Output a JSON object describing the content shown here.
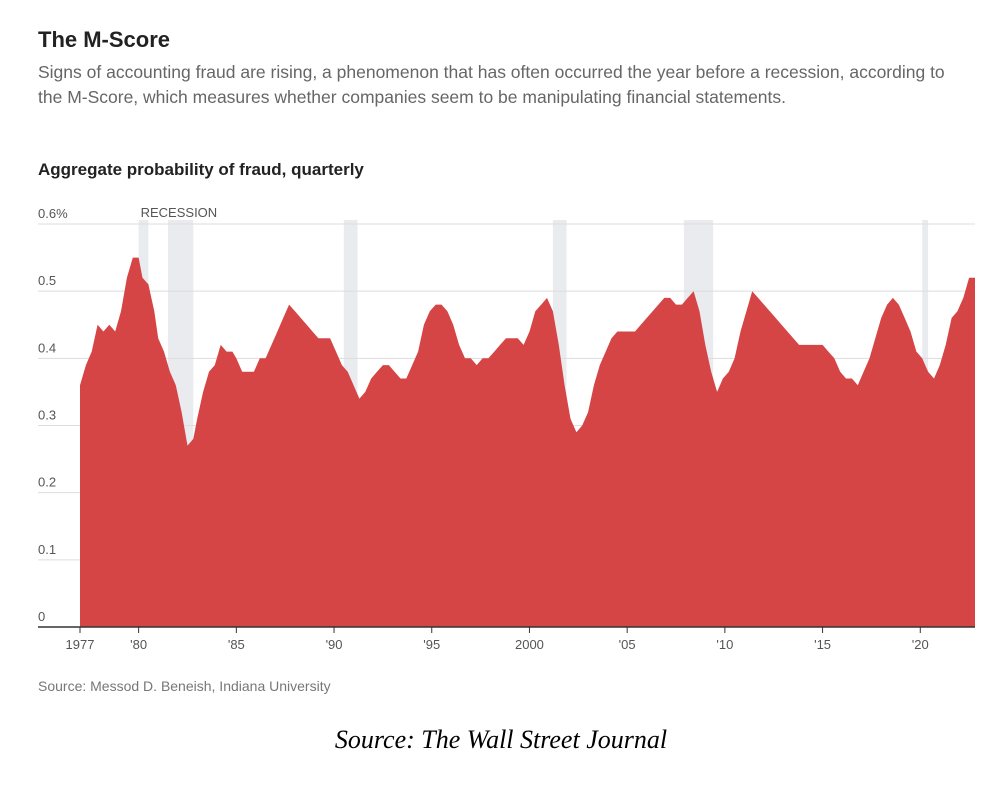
{
  "title": "The M-Score",
  "subtitle": "Signs of accounting fraud are rising, a phenomenon that has often occurred the year before a recession, according to the M-Score, which measures whether companies seem to be manipulating financial statements.",
  "chart_label": "Aggregate probability of fraud, quarterly",
  "source_note": "Source: Messod D. Beneish, Indiana University",
  "credit": "Source: The Wall Street Journal",
  "colors": {
    "area": "#d64545",
    "recession": "#e9ebee",
    "grid": "#dddddd",
    "axis": "#333333"
  },
  "chart_data": {
    "type": "area",
    "ylim": [
      0,
      0.6
    ],
    "xlim": [
      1977,
      2022.8
    ],
    "y_ticks": [
      {
        "value": 0,
        "label": "0"
      },
      {
        "value": 0.1,
        "label": "0.1"
      },
      {
        "value": 0.2,
        "label": "0.2"
      },
      {
        "value": 0.3,
        "label": "0.3"
      },
      {
        "value": 0.4,
        "label": "0.4"
      },
      {
        "value": 0.5,
        "label": "0.5"
      },
      {
        "value": 0.6,
        "label": "0.6%"
      }
    ],
    "x_ticks": [
      {
        "value": 1977,
        "label": "1977"
      },
      {
        "value": 1980,
        "label": "'80"
      },
      {
        "value": 1985,
        "label": "'85"
      },
      {
        "value": 1990,
        "label": "'90"
      },
      {
        "value": 1995,
        "label": "'95"
      },
      {
        "value": 2000,
        "label": "2000"
      },
      {
        "value": 2005,
        "label": "'05"
      },
      {
        "value": 2010,
        "label": "'10"
      },
      {
        "value": 2015,
        "label": "'15"
      },
      {
        "value": 2020,
        "label": "'20"
      }
    ],
    "recession_label": "RECESSION",
    "recessions": [
      [
        1980.0,
        1980.5
      ],
      [
        1981.5,
        1982.8
      ],
      [
        1990.5,
        1991.2
      ],
      [
        2001.2,
        2001.9
      ],
      [
        2007.9,
        2009.4
      ],
      [
        2020.1,
        2020.4
      ]
    ],
    "x": [
      1977.0,
      1977.3,
      1977.6,
      1977.9,
      1978.2,
      1978.5,
      1978.8,
      1979.1,
      1979.4,
      1979.7,
      1980.0,
      1980.2,
      1980.5,
      1980.8,
      1981.0,
      1981.3,
      1981.6,
      1981.9,
      1982.2,
      1982.5,
      1982.8,
      1983.0,
      1983.3,
      1983.6,
      1983.9,
      1984.2,
      1984.5,
      1984.8,
      1985.0,
      1985.3,
      1985.6,
      1985.9,
      1986.2,
      1986.5,
      1986.8,
      1987.1,
      1987.4,
      1987.7,
      1988.0,
      1988.3,
      1988.6,
      1988.9,
      1989.2,
      1989.5,
      1989.8,
      1990.1,
      1990.4,
      1990.7,
      1991.0,
      1991.3,
      1991.6,
      1991.9,
      1992.2,
      1992.5,
      1992.8,
      1993.1,
      1993.4,
      1993.7,
      1994.0,
      1994.3,
      1994.6,
      1994.9,
      1995.2,
      1995.5,
      1995.8,
      1996.1,
      1996.4,
      1996.7,
      1997.0,
      1997.3,
      1997.6,
      1997.9,
      1998.2,
      1998.5,
      1998.8,
      1999.1,
      1999.4,
      1999.7,
      2000.0,
      2000.3,
      2000.6,
      2000.9,
      2001.2,
      2001.5,
      2001.8,
      2002.1,
      2002.4,
      2002.7,
      2003.0,
      2003.3,
      2003.6,
      2003.9,
      2004.2,
      2004.5,
      2004.8,
      2005.1,
      2005.4,
      2005.7,
      2006.0,
      2006.3,
      2006.6,
      2006.9,
      2007.2,
      2007.5,
      2007.8,
      2008.1,
      2008.4,
      2008.7,
      2009.0,
      2009.3,
      2009.6,
      2009.9,
      2010.2,
      2010.5,
      2010.8,
      2011.1,
      2011.4,
      2011.7,
      2012.0,
      2012.3,
      2012.6,
      2012.9,
      2013.2,
      2013.5,
      2013.8,
      2014.1,
      2014.4,
      2014.7,
      2015.0,
      2015.3,
      2015.6,
      2015.9,
      2016.2,
      2016.5,
      2016.8,
      2017.1,
      2017.4,
      2017.7,
      2018.0,
      2018.3,
      2018.6,
      2018.9,
      2019.2,
      2019.5,
      2019.8,
      2020.1,
      2020.4,
      2020.7,
      2021.0,
      2021.3,
      2021.6,
      2021.9,
      2022.2,
      2022.5,
      2022.8
    ],
    "values": [
      0.36,
      0.39,
      0.41,
      0.45,
      0.44,
      0.45,
      0.44,
      0.47,
      0.52,
      0.55,
      0.55,
      0.52,
      0.51,
      0.47,
      0.43,
      0.41,
      0.38,
      0.36,
      0.32,
      0.27,
      0.28,
      0.31,
      0.35,
      0.38,
      0.39,
      0.42,
      0.41,
      0.41,
      0.4,
      0.38,
      0.38,
      0.38,
      0.4,
      0.4,
      0.42,
      0.44,
      0.46,
      0.48,
      0.47,
      0.46,
      0.45,
      0.44,
      0.43,
      0.43,
      0.43,
      0.41,
      0.39,
      0.38,
      0.36,
      0.34,
      0.35,
      0.37,
      0.38,
      0.39,
      0.39,
      0.38,
      0.37,
      0.37,
      0.39,
      0.41,
      0.45,
      0.47,
      0.48,
      0.48,
      0.47,
      0.45,
      0.42,
      0.4,
      0.4,
      0.39,
      0.4,
      0.4,
      0.41,
      0.42,
      0.43,
      0.43,
      0.43,
      0.42,
      0.44,
      0.47,
      0.48,
      0.49,
      0.47,
      0.42,
      0.36,
      0.31,
      0.29,
      0.3,
      0.32,
      0.36,
      0.39,
      0.41,
      0.43,
      0.44,
      0.44,
      0.44,
      0.44,
      0.45,
      0.46,
      0.47,
      0.48,
      0.49,
      0.49,
      0.48,
      0.48,
      0.49,
      0.5,
      0.47,
      0.42,
      0.38,
      0.35,
      0.37,
      0.38,
      0.4,
      0.44,
      0.47,
      0.5,
      0.49,
      0.48,
      0.47,
      0.46,
      0.45,
      0.44,
      0.43,
      0.42,
      0.42,
      0.42,
      0.42,
      0.42,
      0.41,
      0.4,
      0.38,
      0.37,
      0.37,
      0.36,
      0.38,
      0.4,
      0.43,
      0.46,
      0.48,
      0.49,
      0.48,
      0.46,
      0.44,
      0.41,
      0.4,
      0.38,
      0.37,
      0.39,
      0.42,
      0.46,
      0.47,
      0.49,
      0.52,
      0.52
    ]
  }
}
